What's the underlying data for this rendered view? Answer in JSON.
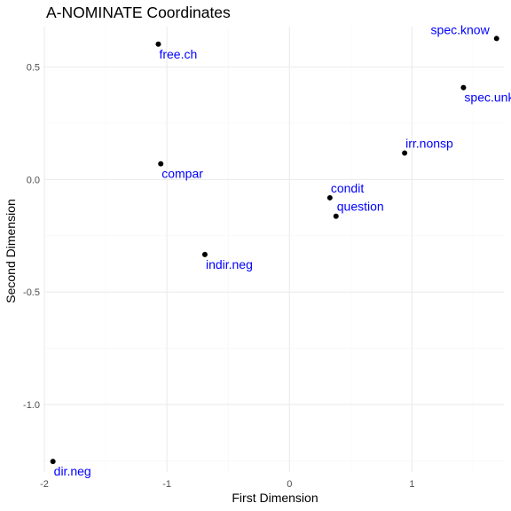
{
  "chart_data": {
    "type": "scatter",
    "title": "A-NOMINATE Coordinates",
    "xlabel": "First Dimension",
    "ylabel": "Second Dimension",
    "xlim": [
      -2.0,
      1.75
    ],
    "ylim": [
      -1.3,
      0.68
    ],
    "x_ticks": [
      -2,
      -1,
      0,
      1
    ],
    "x_tick_labels": [
      "-2",
      "-1",
      "0",
      "1"
    ],
    "y_ticks": [
      -1.0,
      -0.5,
      0.0,
      0.5
    ],
    "y_tick_labels": [
      "-1.0",
      "-0.5",
      "0.0",
      "0.5"
    ],
    "grid": true,
    "legend": "none",
    "point_color": "#000000",
    "label_color": "#0000ff",
    "points": [
      {
        "label": "spec.know",
        "x": 1.69,
        "y": 0.627,
        "label_pos": "above-left"
      },
      {
        "label": "free.ch",
        "x": -1.07,
        "y": 0.602,
        "label_pos": "below"
      },
      {
        "label": "spec.unkn",
        "x": 1.42,
        "y": 0.409,
        "label_pos": "below"
      },
      {
        "label": "irr.nonsp",
        "x": 0.94,
        "y": 0.118,
        "label_pos": "above"
      },
      {
        "label": "compar",
        "x": -1.05,
        "y": 0.07,
        "label_pos": "below"
      },
      {
        "label": "condit",
        "x": 0.33,
        "y": -0.081,
        "label_pos": "above"
      },
      {
        "label": "question",
        "x": 0.38,
        "y": -0.163,
        "label_pos": "above"
      },
      {
        "label": "indir.neg",
        "x": -0.69,
        "y": -0.333,
        "label_pos": "below"
      },
      {
        "label": "dir.neg",
        "x": -1.93,
        "y": -1.253,
        "label_pos": "below"
      }
    ]
  }
}
